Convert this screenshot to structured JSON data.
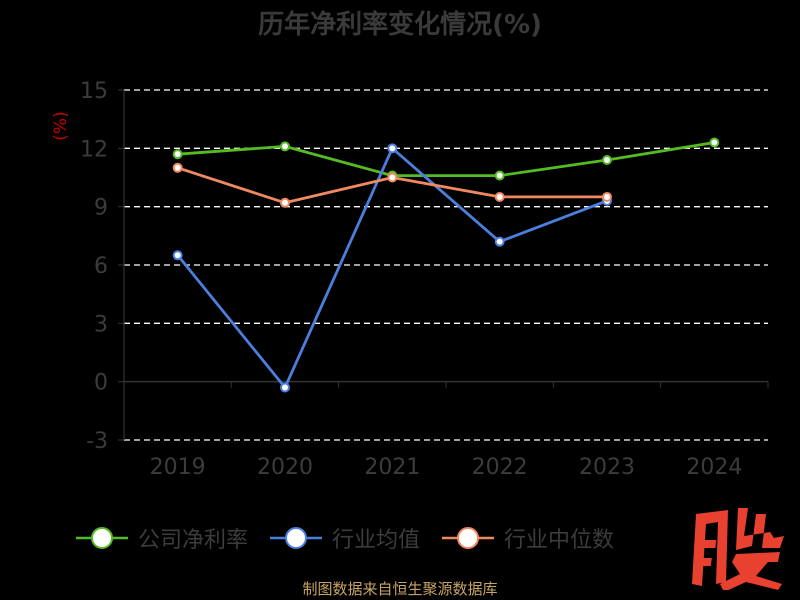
{
  "title": "历年净利率变化情况(%)",
  "source": "制图数据来自恒生聚源数据库",
  "logo_text": "股",
  "colors": {
    "background": "#000000",
    "grid": "#ffffff",
    "axis": "#333333",
    "tick_text": "#3c3c3c",
    "unit_text": "#cc0000",
    "logo": "#e8412f"
  },
  "chart_data": {
    "type": "line",
    "title": "历年净利率变化情况(%)",
    "ylabel": "(%)",
    "xlabel": "",
    "categories": [
      "2019",
      "2020",
      "2021",
      "2022",
      "2023",
      "2024"
    ],
    "ylim": [
      -3,
      15
    ],
    "yticks": [
      -3,
      0,
      3,
      6,
      9,
      12,
      15
    ],
    "grid": true,
    "legend_position": "bottom",
    "series": [
      {
        "name": "公司净利率",
        "color": "#55bb22",
        "values": [
          11.7,
          12.1,
          10.6,
          10.6,
          11.4,
          12.3
        ]
      },
      {
        "name": "行业均值",
        "color": "#4b7fde",
        "values": [
          6.5,
          -0.3,
          12.0,
          7.2,
          9.3,
          null
        ]
      },
      {
        "name": "行业中位数",
        "color": "#f08860",
        "values": [
          11.0,
          9.2,
          10.5,
          9.5,
          9.5,
          null
        ]
      }
    ]
  }
}
